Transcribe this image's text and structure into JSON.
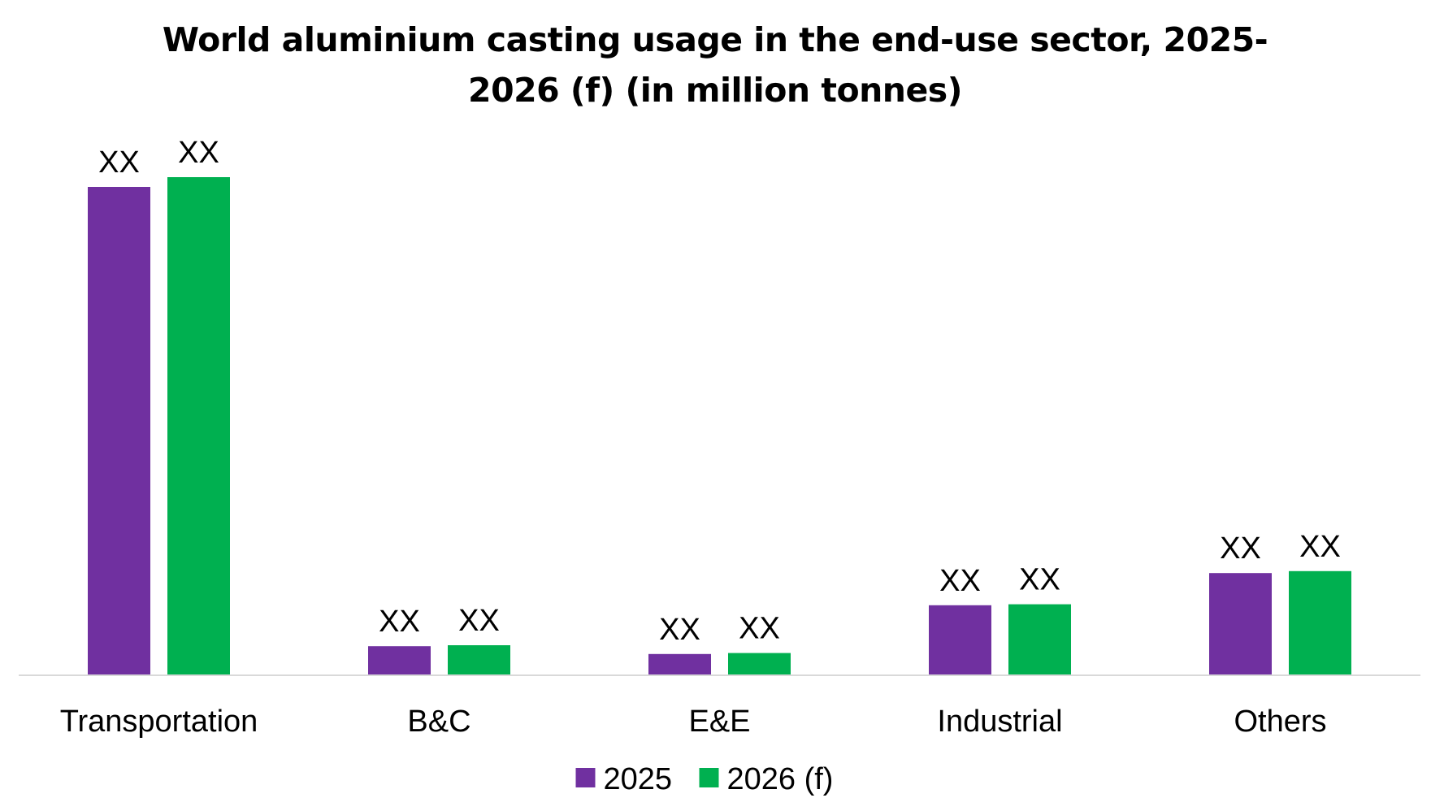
{
  "chart_data": {
    "type": "bar",
    "title": "World aluminium casting usage in the end-use sector, 2025-2026 (f) (in million tonnes)",
    "xlabel": "",
    "ylabel": "",
    "categories": [
      "Transportation",
      "B&C",
      "E&E",
      "Industrial",
      "Others"
    ],
    "series": [
      {
        "name": "2025",
        "color": "#7030A0",
        "values": [
          10.0,
          0.58,
          0.42,
          1.42,
          2.08
        ],
        "labels": [
          "XX",
          "XX",
          "XX",
          "XX",
          "XX"
        ]
      },
      {
        "name": "2026 (f)",
        "color": "#00B050",
        "values": [
          10.2,
          0.6,
          0.44,
          1.44,
          2.12
        ],
        "labels": [
          "XX",
          "XX",
          "XX",
          "XX",
          "XX"
        ]
      }
    ],
    "ylim": [
      0,
      10.2
    ],
    "grid": false,
    "legend_position": "bottom",
    "axis_color": "#D9D9D9"
  }
}
